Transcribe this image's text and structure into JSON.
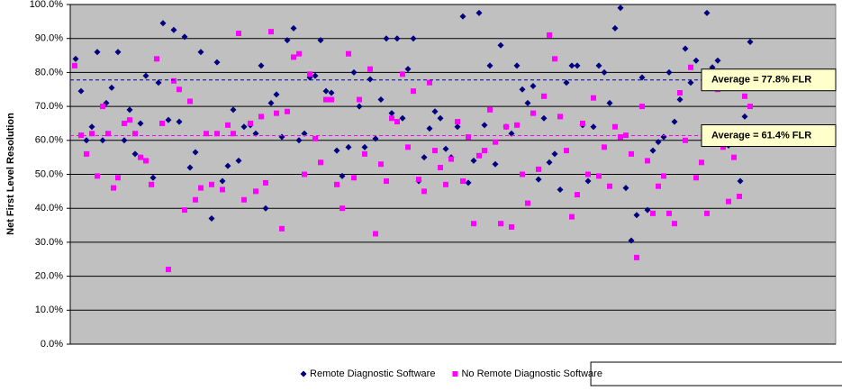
{
  "chart_data": {
    "type": "scatter",
    "ylabel": "Net First Level Resolution",
    "ylim": [
      0,
      100
    ],
    "yticks": [
      {
        "value": 0,
        "label": "0.0%"
      },
      {
        "value": 10,
        "label": "10.0%"
      },
      {
        "value": 20,
        "label": "20.0%"
      },
      {
        "value": 30,
        "label": "30.0%"
      },
      {
        "value": 40,
        "label": "40.0%"
      },
      {
        "value": 50,
        "label": "50.0%"
      },
      {
        "value": 60,
        "label": "60.0%"
      },
      {
        "value": 70,
        "label": "70.0%"
      },
      {
        "value": 80,
        "label": "80.0%"
      },
      {
        "value": 90,
        "label": "90.0%"
      },
      {
        "value": 100,
        "label": "100.0%"
      }
    ],
    "xlim": [
      0,
      850
    ],
    "grid": true,
    "background": "#c0c0c0",
    "legend": "bottom",
    "averages": [
      {
        "label": "Average = 77.8% FLR",
        "value": 77.8,
        "color": "#000099",
        "text_color": "#000000"
      },
      {
        "label": "Average = 61.4% FLR",
        "value": 61.4,
        "color": "#ff00ff",
        "text_color": "#ff00ff"
      }
    ],
    "series": [
      {
        "name": "Remote Diagnostic Software",
        "color": "#000080",
        "marker": "diamond",
        "x": [
          6,
          12,
          18,
          24,
          30,
          36,
          40,
          46,
          53,
          60,
          66,
          72,
          78,
          84,
          92,
          98,
          103,
          109,
          115,
          121,
          127,
          133,
          139,
          145,
          157,
          163,
          169,
          175,
          181,
          187,
          193,
          200,
          206,
          212,
          217,
          223,
          229,
          235,
          241,
          248,
          254,
          260,
          266,
          272,
          278,
          284,
          290,
          296,
          302,
          309,
          315,
          321,
          327,
          333,
          339,
          345,
          351,
          357,
          363,
          369,
          375,
          381,
          387,
          393,
          399,
          405,
          411,
          417,
          423,
          430,
          436,
          442,
          448,
          454,
          460,
          466,
          472,
          478,
          484,
          490,
          496,
          502,
          508,
          514,
          520,
          526,
          532,
          538,
          544,
          551,
          557,
          563,
          569,
          575,
          581,
          587,
          593,
          599,
          605,
          611,
          617,
          623,
          629,
          635,
          641,
          647,
          653,
          659,
          665,
          671,
          677,
          683,
          689,
          695,
          707,
          713,
          719,
          731,
          744,
          749,
          755
        ],
        "values": [
          84,
          74.5,
          60,
          64,
          86,
          60,
          71,
          75.5,
          86,
          60,
          69,
          56,
          65,
          79,
          49,
          77,
          94.5,
          66,
          92.5,
          65.5,
          90.5,
          52,
          56.5,
          86,
          37,
          83,
          48,
          52.5,
          69,
          54,
          64,
          64.5,
          62,
          82,
          40,
          71,
          73.5,
          61,
          89.5,
          93,
          60,
          62,
          78.5,
          79,
          89.5,
          74.5,
          74,
          57,
          49.5,
          58,
          80,
          70,
          58,
          78,
          60.5,
          72,
          90,
          68,
          90,
          66.5,
          81,
          90,
          48,
          55,
          63.5,
          68.5,
          66.5,
          57.5,
          55,
          64,
          96.5,
          47.5,
          54,
          97.5,
          64.5,
          82,
          53,
          88,
          64,
          62,
          82,
          75,
          71,
          76,
          48.5,
          66.5,
          53.5,
          56,
          45.5,
          77,
          82,
          82,
          64.5,
          48,
          64,
          82,
          80,
          71,
          93,
          99,
          46,
          30.5,
          38,
          78.5,
          39.5,
          57,
          59.5,
          61,
          80,
          65.5,
          72,
          87,
          77,
          83.5,
          97.5,
          81.5,
          83.5,
          58.5,
          48,
          67,
          89
        ]
      },
      {
        "name": "No Remote Diagnostic Software",
        "color": "#ff00ff",
        "marker": "square",
        "x": [
          5,
          12,
          18,
          24,
          30,
          36,
          42,
          48,
          53,
          60,
          66,
          72,
          78,
          84,
          90,
          96,
          102,
          109,
          115,
          121,
          127,
          133,
          139,
          145,
          151,
          157,
          163,
          169,
          175,
          181,
          187,
          193,
          200,
          206,
          212,
          217,
          223,
          229,
          235,
          241,
          248,
          254,
          260,
          266,
          272,
          278,
          284,
          290,
          296,
          302,
          309,
          315,
          321,
          327,
          333,
          339,
          345,
          351,
          357,
          363,
          369,
          375,
          381,
          387,
          393,
          399,
          405,
          411,
          417,
          423,
          430,
          436,
          442,
          448,
          454,
          460,
          466,
          472,
          478,
          484,
          490,
          496,
          502,
          508,
          514,
          520,
          526,
          532,
          538,
          544,
          551,
          557,
          563,
          569,
          575,
          581,
          587,
          593,
          599,
          605,
          611,
          617,
          623,
          629,
          635,
          641,
          647,
          653,
          659,
          665,
          671,
          677,
          683,
          689,
          695,
          701,
          707,
          719,
          725,
          731,
          737,
          743,
          749,
          755
        ],
        "values": [
          82,
          61.5,
          56,
          62,
          49.5,
          70,
          62,
          46,
          49,
          65,
          66,
          62,
          55,
          54,
          47,
          84,
          65,
          22,
          77.5,
          75,
          39.5,
          71.5,
          42.5,
          46,
          62,
          47,
          62,
          45.5,
          64.5,
          62,
          91.5,
          42.5,
          65,
          45,
          67,
          47.5,
          92,
          68,
          34,
          68.5,
          84.5,
          85.5,
          50,
          79.5,
          60.5,
          53.5,
          72,
          72,
          47,
          40,
          85.5,
          49,
          72,
          56,
          81,
          32.5,
          53,
          48,
          66.5,
          65.5,
          79.5,
          58,
          74.5,
          48.5,
          45,
          77,
          57,
          52,
          47,
          54.5,
          65.5,
          48,
          61,
          35.5,
          55.5,
          57,
          69,
          59.5,
          35.5,
          64,
          34.5,
          64.5,
          50,
          41.5,
          68,
          51.5,
          73,
          91,
          84,
          67,
          57,
          37.5,
          44,
          65,
          50,
          72.5,
          49.5,
          58,
          46.5,
          64,
          61,
          61.5,
          56,
          25.5,
          70,
          54,
          38.5,
          46.5,
          49.5,
          38.5,
          35.5,
          74,
          60,
          81.5,
          49,
          53.5,
          38.5,
          75,
          58,
          42,
          55,
          43.5,
          73,
          70
        ]
      }
    ]
  }
}
